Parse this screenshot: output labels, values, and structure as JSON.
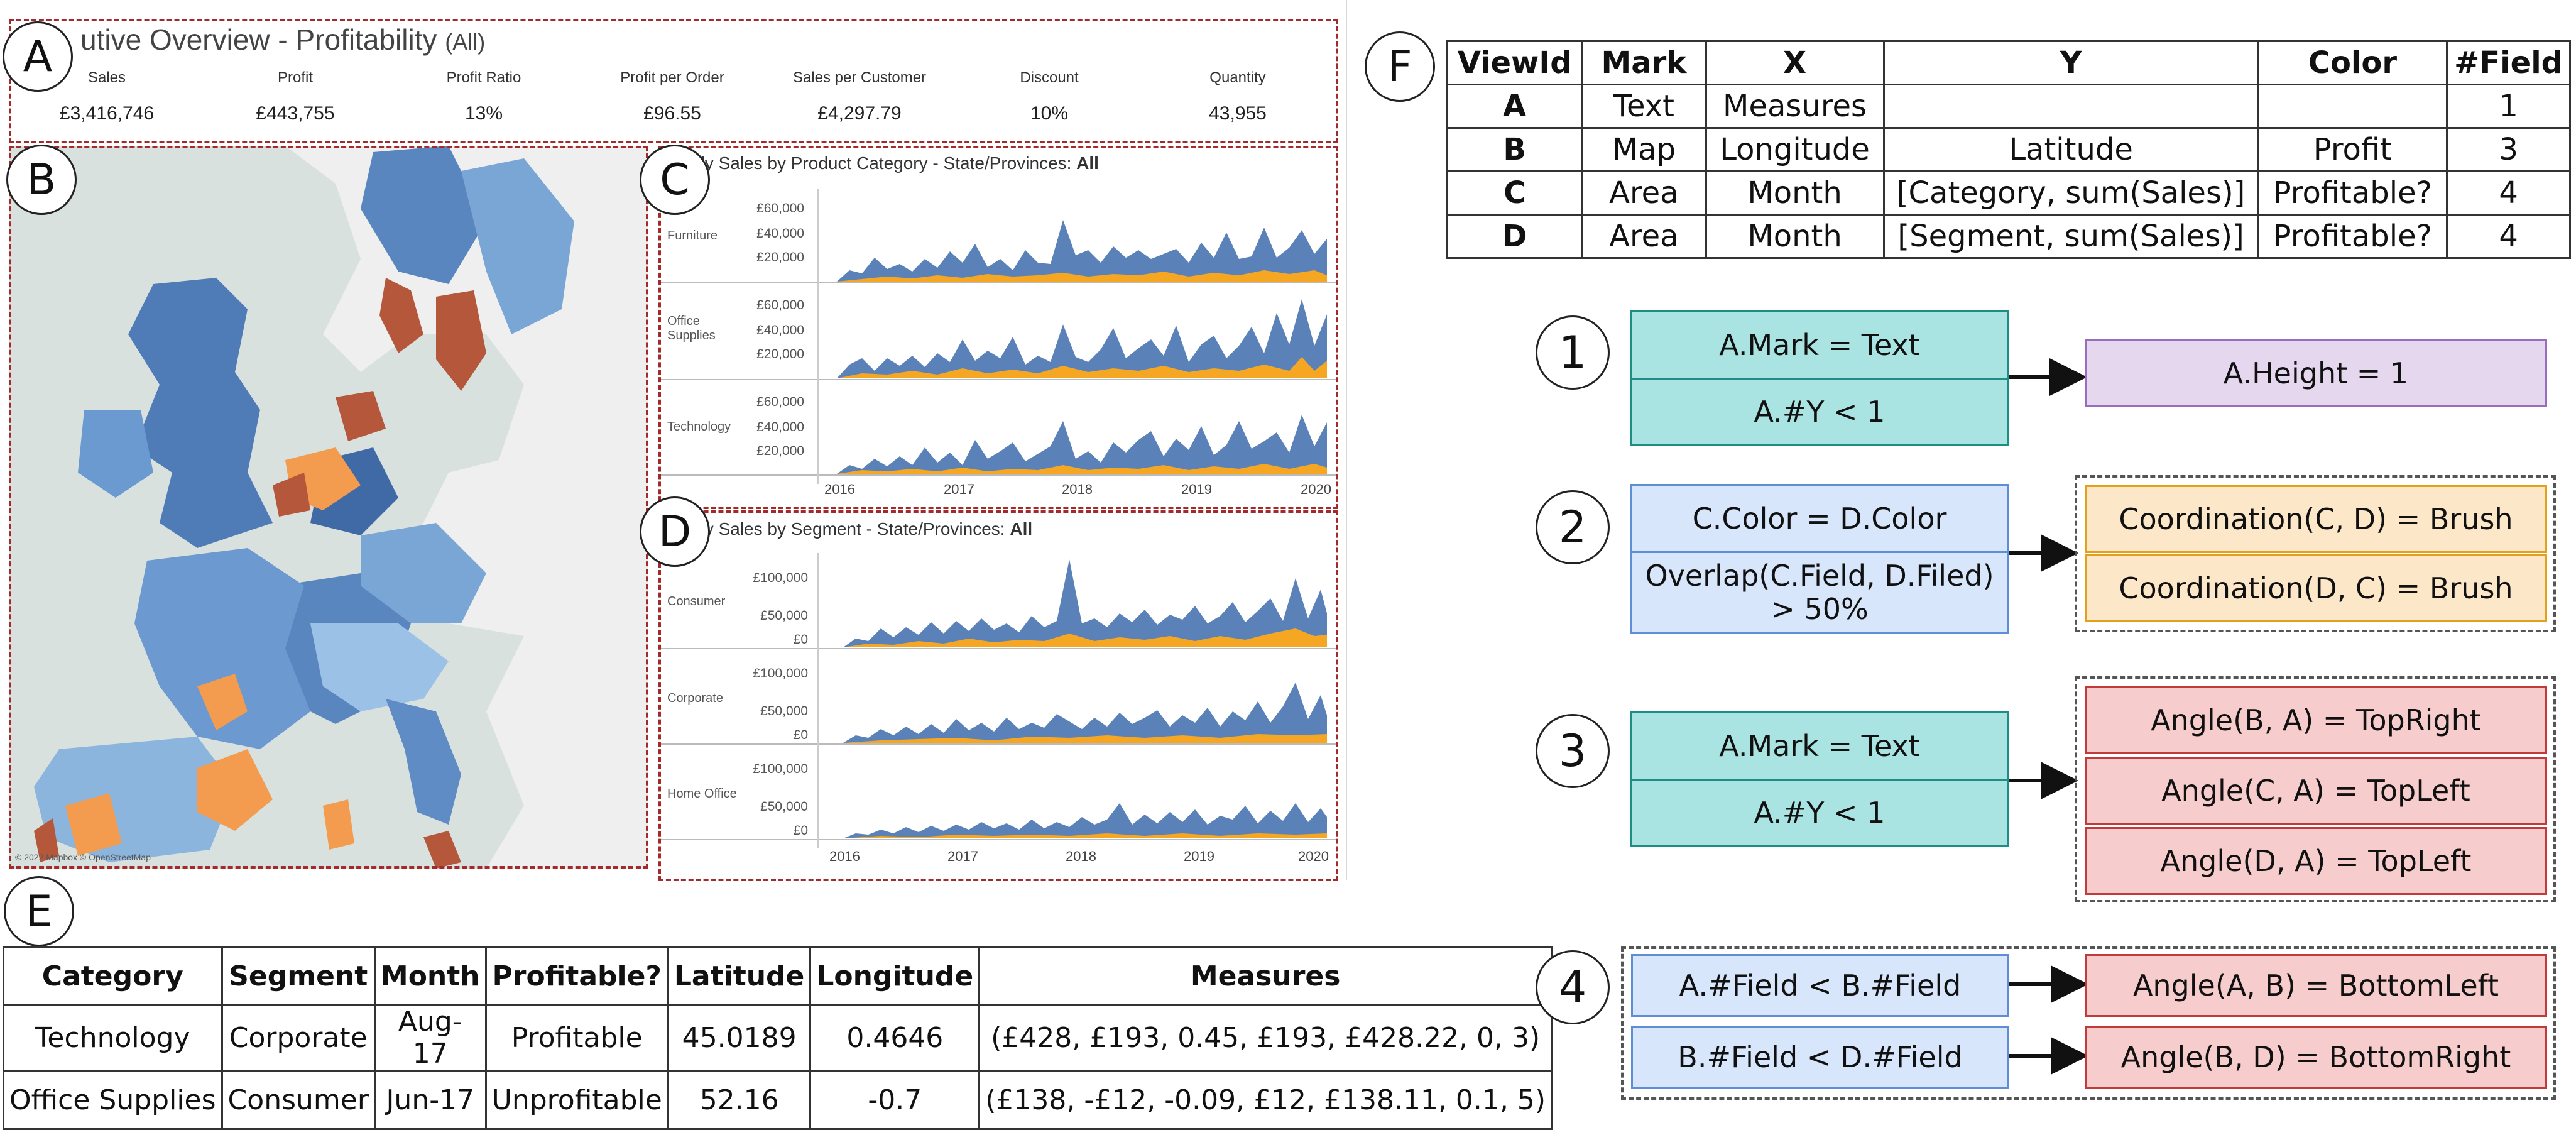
{
  "panel_letters": {
    "A": "A",
    "B": "B",
    "C": "C",
    "D": "D",
    "E": "E",
    "F": "F"
  },
  "dashboard": {
    "title": "utive Overview - Profitability",
    "title_suffix": "(All)",
    "kpis": [
      {
        "label": "Sales",
        "value": "£3,416,746"
      },
      {
        "label": "Profit",
        "value": "£443,755"
      },
      {
        "label": "Profit Ratio",
        "value": "13%"
      },
      {
        "label": "Profit per Order",
        "value": "£96.55"
      },
      {
        "label": "Sales per Customer",
        "value": "£4,297.79"
      },
      {
        "label": "Discount",
        "value": "10%"
      },
      {
        "label": "Quantity",
        "value": "43,955"
      }
    ],
    "map_credit": "© 2022 Mapbox © OpenStreetMap",
    "chart_c": {
      "title": "hly Sales by Product Category - State/Provinces:",
      "title_bold": "All",
      "rows": [
        "Furniture",
        "Office Supplies",
        "Technology"
      ],
      "ticks": [
        "£60,000",
        "£40,000",
        "£20,000"
      ]
    },
    "chart_d": {
      "title": "hly Sales by Segment - State/Provinces:",
      "title_bold": "All",
      "rows": [
        "Consumer",
        "Corporate",
        "Home Office"
      ],
      "ticks": [
        "£100,000",
        "£50,000",
        "£0"
      ]
    },
    "years": [
      "2016",
      "2017",
      "2018",
      "2019",
      "2020"
    ],
    "colors": {
      "sales": "#5b82b8",
      "profit_orange": "#f5a623",
      "map_base": "#dfe6e4",
      "map_dark": "#b5573a"
    }
  },
  "table_f": {
    "headers": [
      "ViewId",
      "Mark",
      "X",
      "Y",
      "Color",
      "#Field"
    ],
    "rows": [
      [
        "A",
        "Text",
        "Measures",
        "",
        "",
        "1"
      ],
      [
        "B",
        "Map",
        "Longitude",
        "Latitude",
        "Profit",
        "3"
      ],
      [
        "C",
        "Area",
        "Month",
        "[Category, sum(Sales)]",
        "Profitable?",
        "4"
      ],
      [
        "D",
        "Area",
        "Month",
        "[Segment, sum(Sales)]",
        "Profitable?",
        "4"
      ]
    ]
  },
  "table_e": {
    "headers": [
      "Category",
      "Segment",
      "Month",
      "Profitable?",
      "Latitude",
      "Longitude",
      "Measures"
    ],
    "rows": [
      [
        "Technology",
        "Corporate",
        "Aug-17",
        "Profitable",
        "45.0189",
        "0.4646",
        "(£428, £193, 0.45, £193, £428.22, 0, 3)"
      ],
      [
        "Office Supplies",
        "Consumer",
        "Jun-17",
        "Unprofitable",
        "52.16",
        "-0.7",
        "(£138, -£12, -0.09, £12, £138.11, 0.1, 5)"
      ]
    ]
  },
  "rules": [
    {
      "num": "1",
      "conditions": [
        "A.Mark = Text",
        "A.#Y < 1"
      ],
      "results": [
        "A.Height = 1"
      ]
    },
    {
      "num": "2",
      "conditions": [
        "C.Color = D.Color",
        "Overlap(C.Field, D.Filed)\n> 50%"
      ],
      "results": [
        "Coordination(C, D) = Brush",
        "Coordination(D, C) = Brush"
      ]
    },
    {
      "num": "3",
      "conditions": [
        "A.Mark = Text",
        "A.#Y < 1"
      ],
      "results": [
        "Angle(B, A) = TopRight",
        "Angle(C, A) = TopLeft",
        "Angle(D, A) = TopLeft"
      ]
    },
    {
      "num": "4",
      "conditions": [
        "A.#Field < B.#Field",
        "B.#Field < D.#Field"
      ],
      "results": [
        "Angle(A, B) = BottomLeft",
        "Angle(B, D) = BottomRight"
      ]
    }
  ]
}
